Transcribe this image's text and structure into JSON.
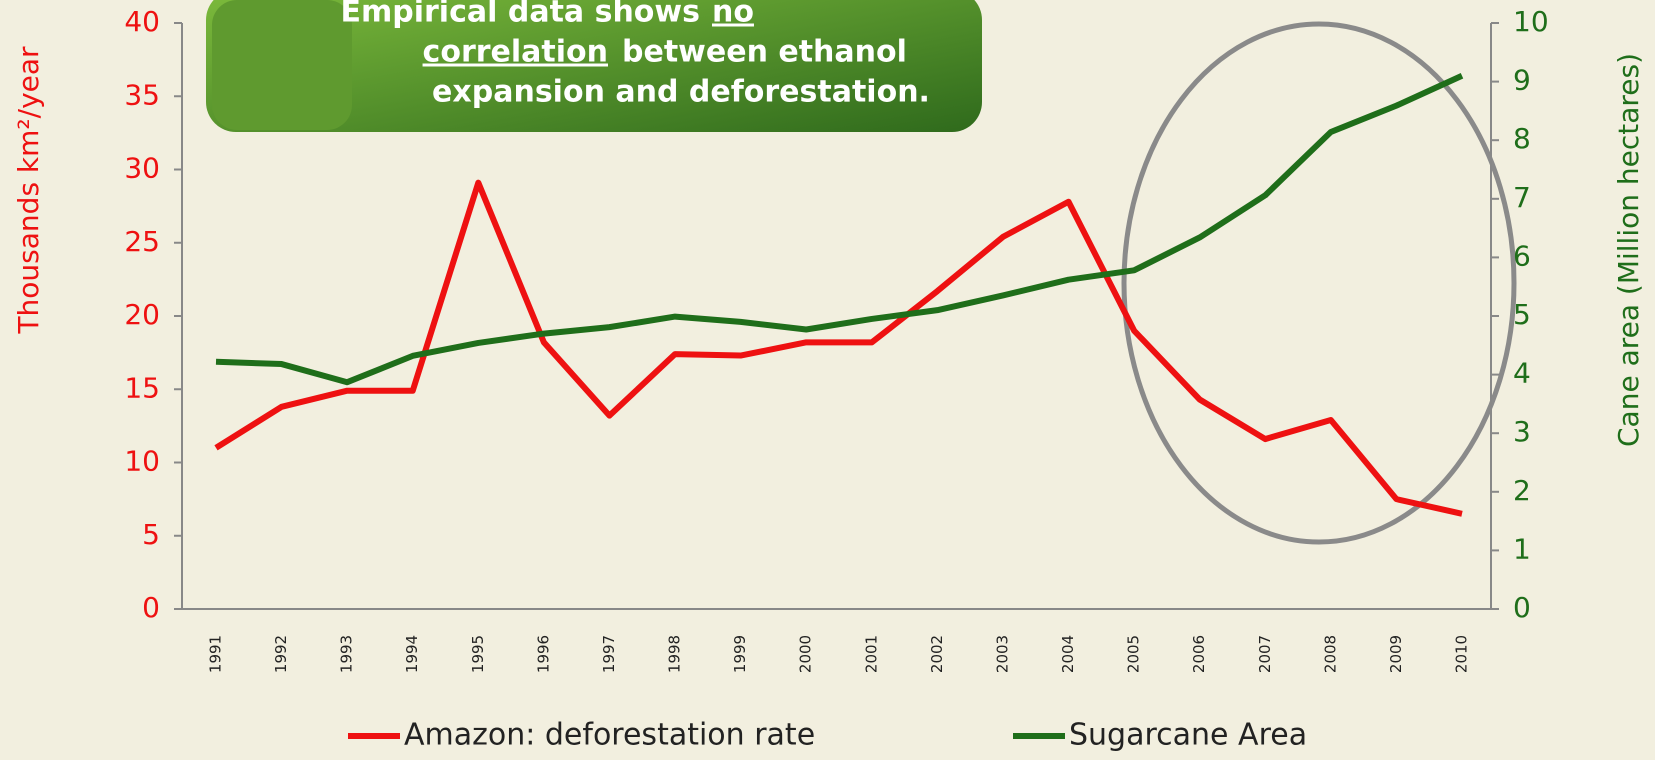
{
  "chart_data": {
    "type": "line",
    "banner": {
      "line1": "Empirical data shows",
      "line1_underlined": "no",
      "line2_underlined": "correlation",
      "line2": "between ethanol",
      "line3": "expansion and deforestation."
    },
    "y_label": "Thousands km²/year",
    "y2_label": "Cane area (Million hectares)",
    "categories": [
      "1991",
      "1992",
      "1993",
      "1994",
      "1995",
      "1996",
      "1997",
      "1998",
      "1999",
      "2000",
      "2001",
      "2002",
      "2003",
      "2004",
      "2005",
      "2006",
      "2007",
      "2008",
      "2009",
      "2010"
    ],
    "series": [
      {
        "name": "Amazon: deforestation rate",
        "color": "#ee1111",
        "values": [
          11.0,
          13.8,
          14.9,
          14.9,
          29.1,
          18.2,
          13.2,
          17.4,
          17.3,
          18.2,
          18.2,
          21.7,
          25.4,
          27.8,
          19.0,
          14.3,
          11.6,
          12.9,
          7.5,
          6.5
        ]
      },
      {
        "name": "Sugarcane Area",
        "color": "#1f6e1a",
        "axis": "y2",
        "values": [
          4.22,
          4.18,
          3.87,
          4.32,
          4.54,
          4.7,
          4.81,
          4.99,
          4.9,
          4.77,
          4.95,
          5.1,
          5.35,
          5.62,
          5.78,
          6.34,
          7.06,
          8.14,
          8.59,
          9.1
        ]
      }
    ],
    "ylim": [
      0,
      40
    ],
    "yticks": [
      0,
      5,
      10,
      15,
      20,
      25,
      30,
      35,
      40
    ],
    "y2lim": [
      0,
      10
    ],
    "y2ticks": [
      0,
      1,
      2,
      3,
      4,
      5,
      6,
      7,
      8,
      9,
      10
    ]
  }
}
